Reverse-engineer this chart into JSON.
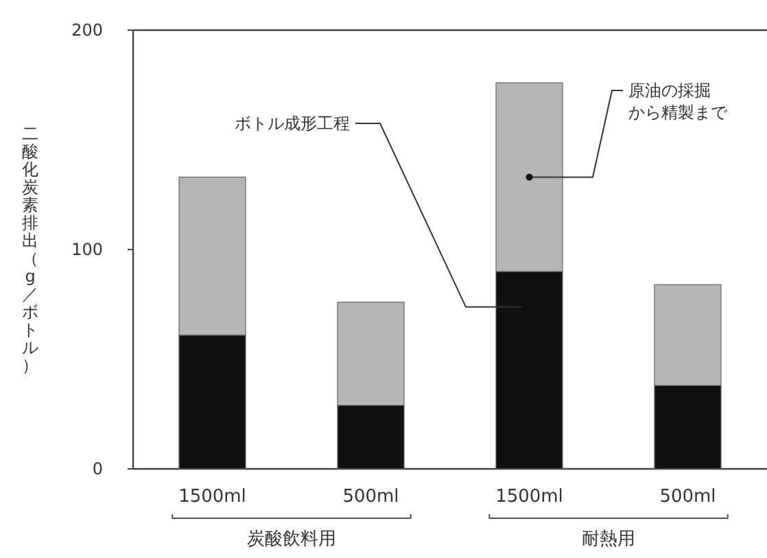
{
  "chart_data": {
    "type": "bar",
    "stacked": true,
    "ylabel": "二酸化炭素排出（g／ボトル）",
    "categories": [
      "1500ml",
      "500ml",
      "1500ml",
      "500ml"
    ],
    "series": [
      {
        "name": "ボトル成形工程",
        "color": "#111111",
        "values": [
          61,
          29,
          90,
          38
        ]
      },
      {
        "name": "原油の採掘から精製まで",
        "color": "#b5b5b5",
        "values": [
          72,
          47,
          86,
          46
        ]
      }
    ],
    "ylim": [
      0,
      200
    ],
    "yticks": [
      0,
      100,
      200
    ],
    "grid": false,
    "legend": false,
    "annotations": [
      "炭酸飲料用",
      "耐熱用"
    ]
  }
}
